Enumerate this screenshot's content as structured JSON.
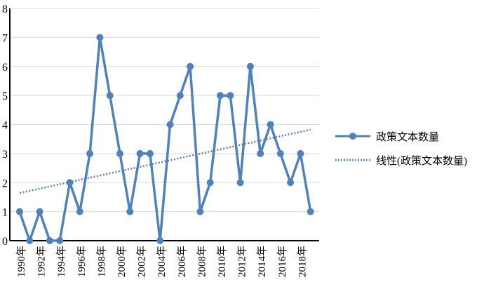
{
  "chart_data": {
    "type": "line",
    "title": "",
    "xlabel": "",
    "ylabel": "",
    "ylim": [
      0,
      8
    ],
    "yticks": [
      "0",
      "1",
      "2",
      "3",
      "4",
      "5",
      "6",
      "7",
      "8"
    ],
    "x": [
      "1990年",
      "1991年",
      "1992年",
      "1993年",
      "1994年",
      "1995年",
      "1996年",
      "1997年",
      "1998年",
      "1999年",
      "2000年",
      "2001年",
      "2002年",
      "2003年",
      "2004年",
      "2005年",
      "2006年",
      "2007年",
      "2008年",
      "2009年",
      "2010年",
      "2011年",
      "2012年",
      "2013年",
      "2014年",
      "2015年",
      "2016年",
      "2017年",
      "2018年",
      "2019年"
    ],
    "xtick_labels": [
      "1990年",
      "1992年",
      "1994年",
      "1996年",
      "1998年",
      "2000年",
      "2002年",
      "2004年",
      "2006年",
      "2008年",
      "2010年",
      "2012年",
      "2014年",
      "2016年",
      "2018年"
    ],
    "grid": true,
    "legend_position": "right",
    "series": [
      {
        "name": "政策文本数量",
        "color": "#4f81bd",
        "style": "solid-with-markers",
        "values": [
          1,
          0,
          1,
          0,
          0,
          2,
          1,
          3,
          7,
          5,
          3,
          1,
          3,
          3,
          0,
          4,
          5,
          6,
          1,
          2,
          5,
          5,
          2,
          6,
          3,
          4,
          3,
          2,
          3,
          1
        ]
      },
      {
        "name": "线性(政策文本数量)",
        "color": "#4f81bd",
        "style": "dotted-linear-trend"
      }
    ]
  }
}
